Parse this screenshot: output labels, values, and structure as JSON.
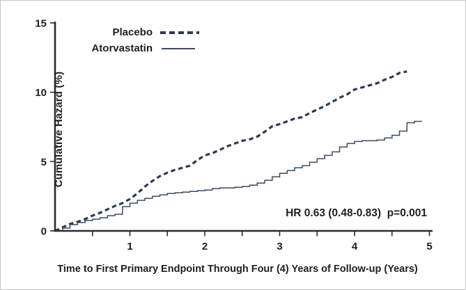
{
  "figure": {
    "legend": {
      "placebo_label": "Placebo",
      "atorvastatin_label": "Atorvastatin"
    },
    "annotation": "HR 0.63 (0.48-0.83)  p=0.001"
  },
  "chart_data": {
    "type": "line",
    "subtype": "cumulative-hazard-step-curves",
    "title": "",
    "xlabel": "Time to First Primary Endpoint Through Four (4) Years of Follow-up (Years)",
    "ylabel": "Cumulative Hazard (%)",
    "xlim": [
      0,
      5
    ],
    "ylim": [
      0,
      15
    ],
    "xticks": [
      1,
      2,
      3,
      4,
      5
    ],
    "xticks_minor_step": 0.5,
    "yticks": [
      0,
      5,
      10,
      15
    ],
    "grid": false,
    "legend_position": "top-left-inside",
    "annotation": "HR 0.63 (0.48-0.83)  p=0.001",
    "colors": {
      "axis": "#2b2b2b",
      "text": "#1f1f1f",
      "placebo": "#2c3a55",
      "atorvastatin": "#3c4a63"
    },
    "series": [
      {
        "name": "Placebo",
        "style": "dashed",
        "interpolation": "linear",
        "x": [
          0,
          0.1,
          0.2,
          0.3,
          0.4,
          0.5,
          0.6,
          0.7,
          0.8,
          0.9,
          1.0,
          1.1,
          1.2,
          1.3,
          1.4,
          1.5,
          1.6,
          1.7,
          1.8,
          1.9,
          2.0,
          2.1,
          2.2,
          2.3,
          2.4,
          2.5,
          2.6,
          2.7,
          2.8,
          2.9,
          3.0,
          3.1,
          3.2,
          3.3,
          3.4,
          3.5,
          3.6,
          3.7,
          3.8,
          3.9,
          4.0,
          4.1,
          4.2,
          4.3,
          4.4,
          4.5,
          4.6,
          4.7
        ],
        "y": [
          0,
          0.25,
          0.5,
          0.65,
          0.85,
          1.1,
          1.3,
          1.55,
          1.8,
          2.0,
          2.3,
          2.7,
          3.2,
          3.6,
          3.95,
          4.2,
          4.4,
          4.55,
          4.7,
          5.1,
          5.45,
          5.6,
          5.85,
          6.1,
          6.3,
          6.5,
          6.6,
          6.8,
          7.15,
          7.55,
          7.7,
          7.9,
          8.1,
          8.2,
          8.5,
          8.75,
          9.0,
          9.3,
          9.6,
          9.85,
          10.2,
          10.35,
          10.5,
          10.65,
          10.9,
          11.1,
          11.4,
          11.5
        ]
      },
      {
        "name": "Atorvastatin",
        "style": "solid",
        "interpolation": "step-after",
        "x": [
          0,
          0.1,
          0.2,
          0.3,
          0.4,
          0.5,
          0.6,
          0.7,
          0.8,
          0.9,
          1.0,
          1.1,
          1.2,
          1.3,
          1.4,
          1.5,
          1.6,
          1.7,
          1.8,
          1.9,
          2.0,
          2.1,
          2.2,
          2.3,
          2.4,
          2.5,
          2.6,
          2.7,
          2.8,
          2.9,
          3.0,
          3.1,
          3.2,
          3.3,
          3.4,
          3.5,
          3.6,
          3.7,
          3.8,
          3.9,
          4.0,
          4.1,
          4.2,
          4.3,
          4.4,
          4.5,
          4.6,
          4.7,
          4.8,
          4.9
        ],
        "y": [
          0,
          0.2,
          0.45,
          0.6,
          0.75,
          0.85,
          0.95,
          1.1,
          1.2,
          1.75,
          2.0,
          2.2,
          2.35,
          2.5,
          2.6,
          2.7,
          2.75,
          2.8,
          2.85,
          2.9,
          2.95,
          3.05,
          3.1,
          3.1,
          3.15,
          3.2,
          3.3,
          3.45,
          3.65,
          3.9,
          4.15,
          4.35,
          4.55,
          4.7,
          4.95,
          5.2,
          5.45,
          5.7,
          6.05,
          6.3,
          6.45,
          6.5,
          6.5,
          6.55,
          6.7,
          6.9,
          7.2,
          7.8,
          7.9,
          7.9
        ]
      }
    ]
  }
}
